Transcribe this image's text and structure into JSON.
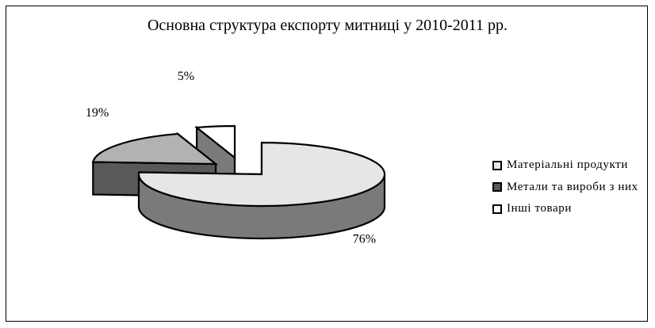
{
  "chart_data": {
    "type": "pie",
    "title": "Основна структура експорту митниці у 2010-2011 рр.",
    "categories": [
      "Матеріальні продукти",
      "Метали та вироби з них",
      "Інші товари"
    ],
    "values": [
      76,
      19,
      5
    ],
    "data_labels": [
      "76%",
      "19%",
      "5%"
    ],
    "colors": {
      "top": [
        "#e6e6e6",
        "#b2b2b2",
        "#ffffff"
      ],
      "side": [
        "#7a7a7a",
        "#595959",
        "#7a7a7a"
      ]
    },
    "legend_position": "right",
    "style": "3d-exploded"
  }
}
